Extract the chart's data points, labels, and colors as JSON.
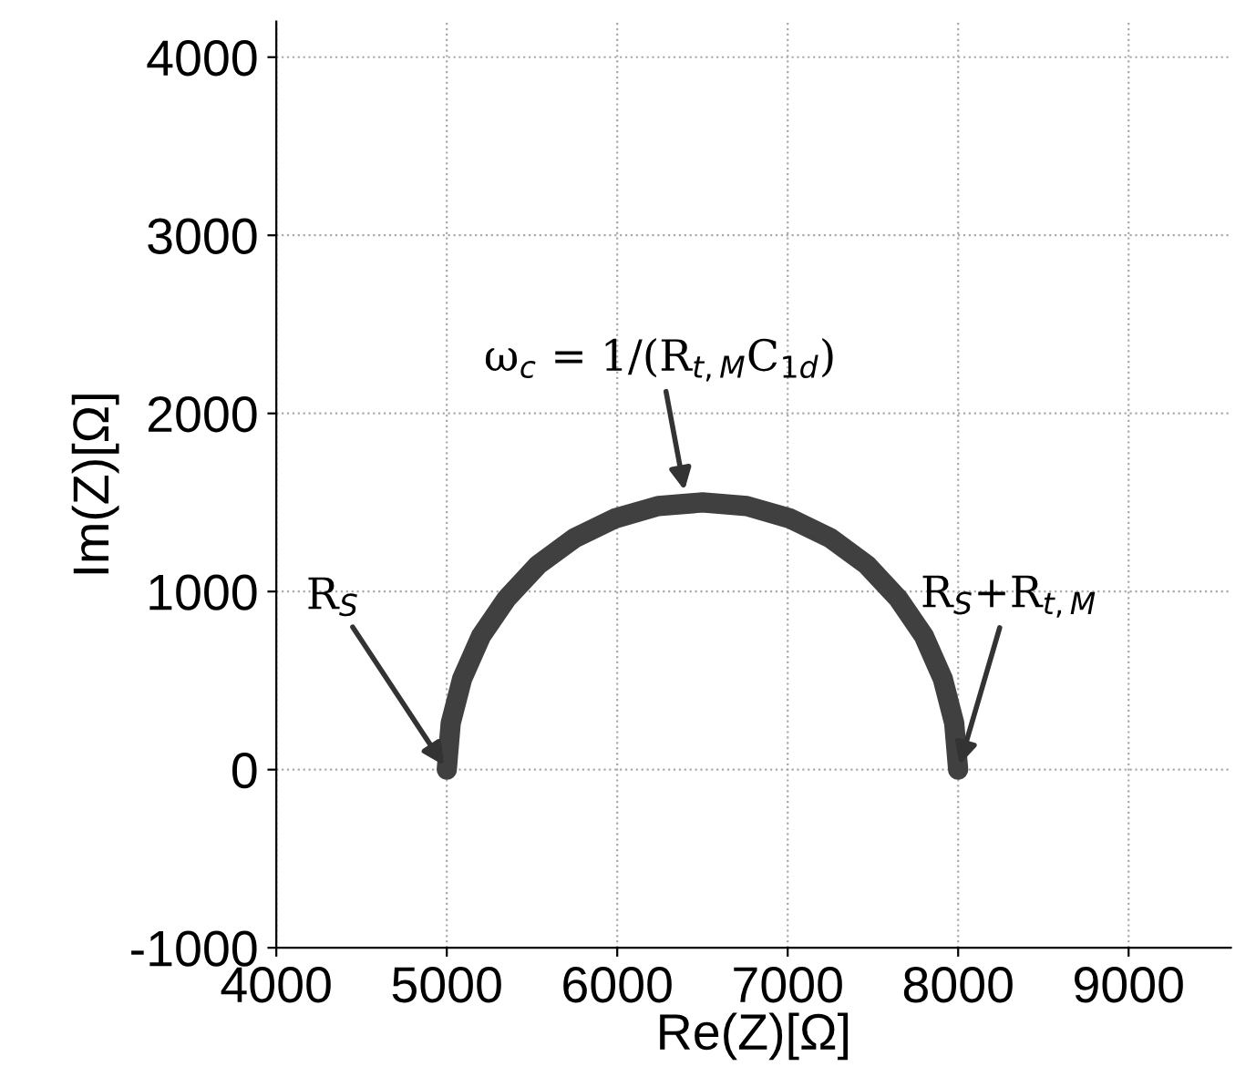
{
  "chart_data": {
    "type": "line",
    "xlabel": "Re(Z)[Ω]",
    "ylabel": "Im(Z)[Ω]",
    "x": [
      5000,
      5023,
      5090,
      5201,
      5351,
      5536,
      5750,
      5987,
      6240,
      6500,
      6760,
      7013,
      7250,
      7464,
      7649,
      7799,
      7910,
      7977,
      8000
    ],
    "series": [
      {
        "color": "#404040",
        "values": [
          0,
          260,
          510,
          750,
          960,
          1150,
          1300,
          1410,
          1480,
          1500,
          1480,
          1410,
          1300,
          1150,
          960,
          750,
          510,
          260,
          0
        ]
      }
    ],
    "xlim": [
      4000,
      9600
    ],
    "ylim": [
      -1000,
      4200
    ],
    "xticks": [
      4000,
      5000,
      6000,
      7000,
      8000,
      9000
    ],
    "yticks": [
      -1000,
      0,
      1000,
      2000,
      3000,
      4000
    ],
    "grid": true,
    "line_style": "solid",
    "annotations": [
      {
        "text": "R$_{S}$",
        "x": 5000,
        "y": 0
      },
      {
        "text": "ω$_{c}$ = 1/(R$_{t,M}$C$_{1d}$)",
        "x": 6400,
        "y": 1540
      },
      {
        "text": "R$_{S}$+R$_{t,M}$",
        "x": 8000,
        "y": 0
      }
    ]
  }
}
